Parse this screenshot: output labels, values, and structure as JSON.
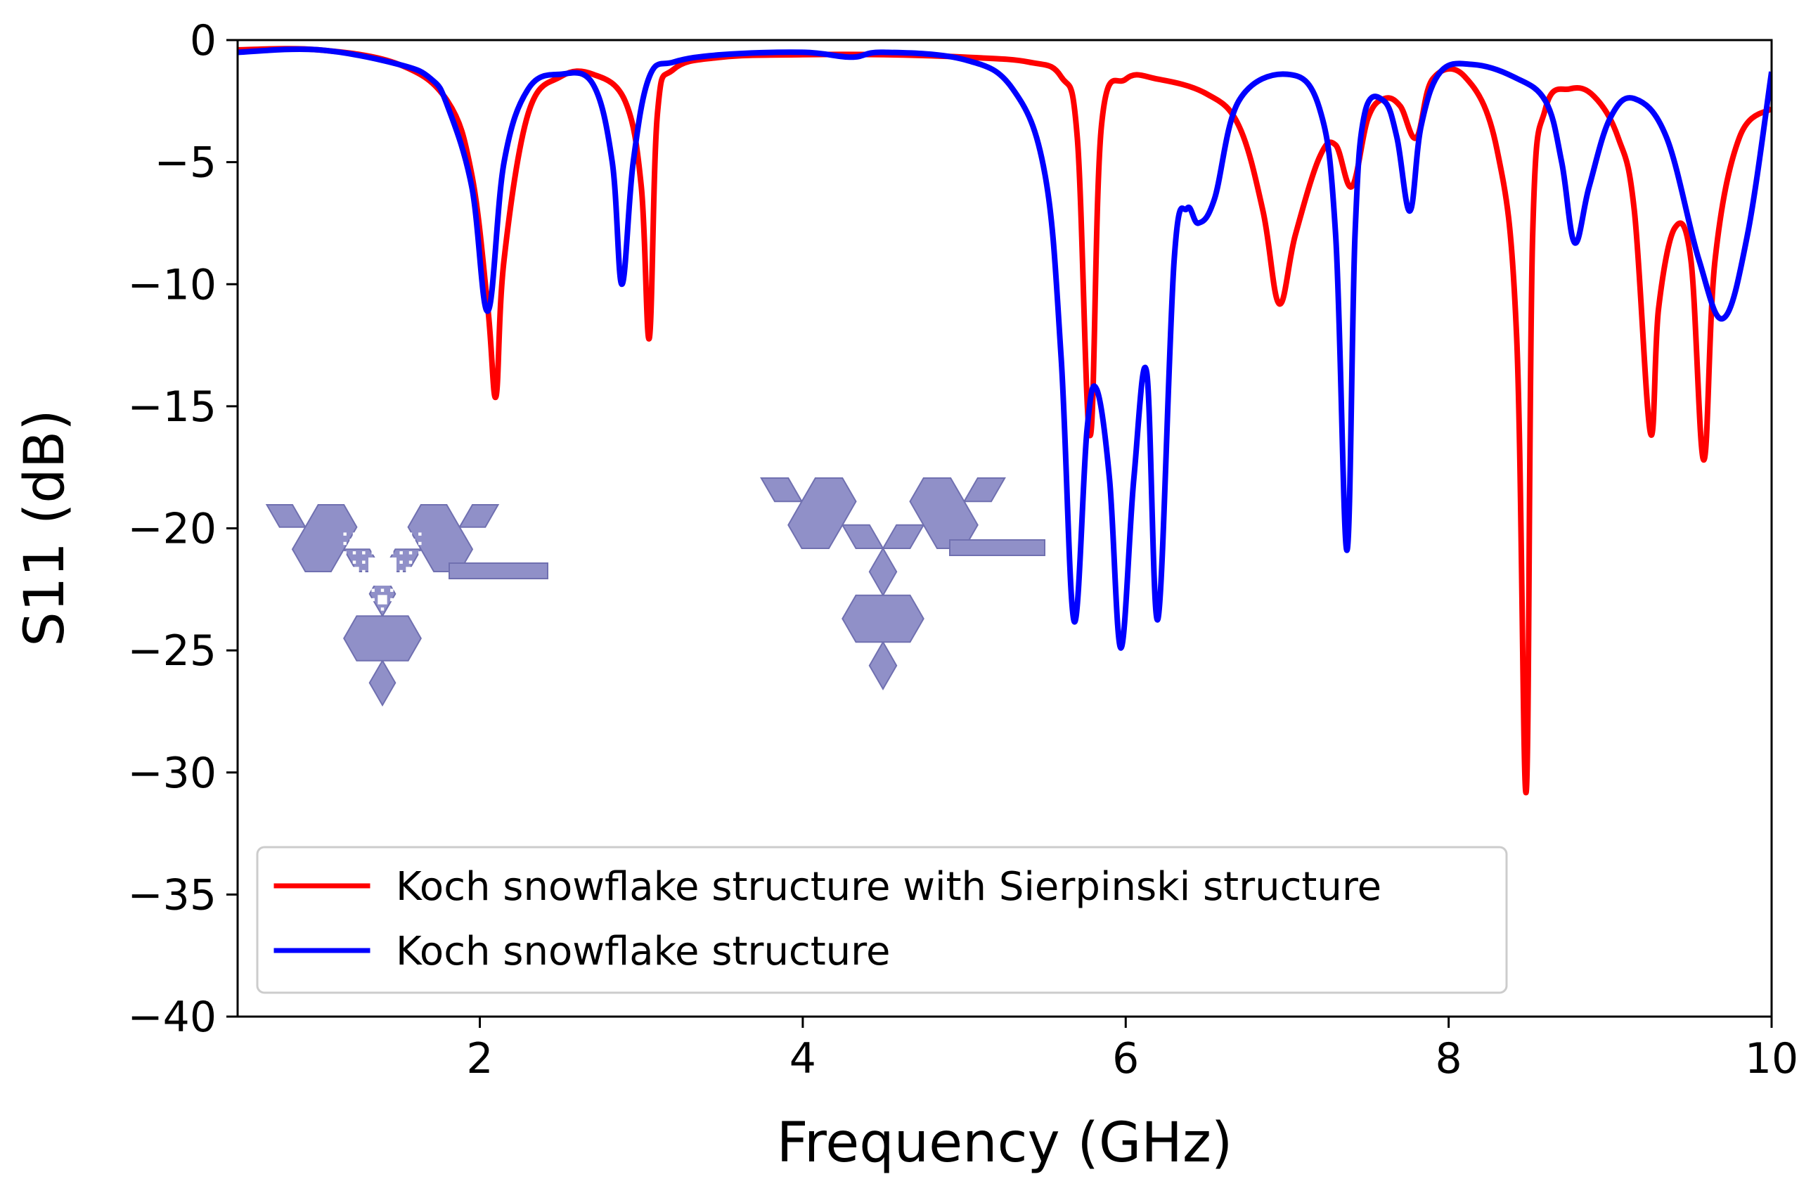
{
  "chart_data": {
    "type": "line",
    "xlabel": "Frequency (GHz)",
    "ylabel": "S11 (dB)",
    "xlim": [
      0.5,
      10
    ],
    "ylim": [
      -40,
      0
    ],
    "xticks": [
      2,
      4,
      6,
      8,
      10
    ],
    "yticks": [
      0,
      -5,
      -10,
      -15,
      -20,
      -25,
      -30,
      -35,
      -40
    ],
    "ytick_labels": [
      "0",
      "−5",
      "−10",
      "−15",
      "−20",
      "−25",
      "−30",
      "−35",
      "−40"
    ],
    "grid": false,
    "legend_position": "lower-left",
    "series": [
      {
        "name": "Koch snowflake structure with Sierpinski structure",
        "color": "#ff0000",
        "x": [
          0.5,
          1.0,
          1.5,
          1.8,
          1.95,
          2.05,
          2.1,
          2.15,
          2.3,
          2.5,
          2.7,
          2.9,
          3.0,
          3.05,
          3.1,
          3.2,
          3.5,
          4.0,
          4.5,
          5.0,
          5.4,
          5.6,
          5.7,
          5.78,
          5.85,
          6.0,
          6.2,
          6.5,
          6.7,
          6.85,
          6.95,
          7.05,
          7.2,
          7.3,
          7.4,
          7.5,
          7.6,
          7.7,
          7.8,
          7.9,
          8.1,
          8.3,
          8.42,
          8.48,
          8.52,
          8.6,
          8.75,
          8.9,
          9.05,
          9.15,
          9.25,
          9.3,
          9.4,
          9.5,
          9.58,
          9.65,
          9.8,
          10.0
        ],
        "y": [
          -0.4,
          -0.4,
          -1.0,
          -2.5,
          -5.5,
          -11.0,
          -14.6,
          -9.0,
          -3.0,
          -1.5,
          -1.4,
          -2.5,
          -6.0,
          -12.2,
          -3.0,
          -1.2,
          -0.7,
          -0.6,
          -0.6,
          -0.7,
          -0.9,
          -1.5,
          -4.0,
          -16.2,
          -3.5,
          -1.6,
          -1.6,
          -2.2,
          -3.5,
          -7.0,
          -10.8,
          -8.0,
          -4.8,
          -4.3,
          -6.0,
          -3.2,
          -2.4,
          -2.7,
          -4.0,
          -1.6,
          -1.5,
          -4.5,
          -12.0,
          -30.8,
          -8.0,
          -2.8,
          -2.0,
          -2.3,
          -4.0,
          -7.0,
          -16.1,
          -11.0,
          -7.7,
          -9.0,
          -17.2,
          -9.0,
          -4.0,
          -2.8
        ]
      },
      {
        "name": "Koch snowflake structure",
        "color": "#0000ff",
        "x": [
          0.5,
          1.0,
          1.5,
          1.7,
          1.8,
          1.95,
          2.05,
          2.15,
          2.3,
          2.5,
          2.7,
          2.82,
          2.88,
          2.95,
          3.05,
          3.2,
          3.5,
          4.0,
          4.3,
          4.5,
          5.0,
          5.3,
          5.5,
          5.6,
          5.68,
          5.76,
          5.82,
          5.9,
          5.97,
          6.05,
          6.13,
          6.2,
          6.3,
          6.38,
          6.45,
          6.55,
          6.7,
          7.0,
          7.2,
          7.3,
          7.37,
          7.42,
          7.48,
          7.6,
          7.68,
          7.76,
          7.83,
          7.95,
          8.15,
          8.4,
          8.6,
          8.7,
          8.78,
          8.87,
          9.0,
          9.15,
          9.35,
          9.55,
          9.7,
          9.85,
          10.0
        ],
        "y": [
          -0.5,
          -0.4,
          -1.0,
          -1.6,
          -2.7,
          -6.0,
          -11.1,
          -5.0,
          -2.0,
          -1.4,
          -1.8,
          -5.0,
          -10.0,
          -5.0,
          -1.5,
          -0.9,
          -0.6,
          -0.5,
          -0.7,
          -0.5,
          -0.8,
          -2.0,
          -5.5,
          -13.0,
          -23.8,
          -16.0,
          -14.3,
          -18.0,
          -24.9,
          -18.0,
          -13.6,
          -23.7,
          -9.0,
          -6.9,
          -7.5,
          -6.5,
          -2.5,
          -1.4,
          -2.8,
          -8.0,
          -20.9,
          -8.0,
          -3.0,
          -2.5,
          -4.0,
          -7.0,
          -3.5,
          -1.3,
          -1.0,
          -1.5,
          -2.5,
          -5.0,
          -8.3,
          -6.0,
          -3.2,
          -2.4,
          -4.0,
          -9.0,
          -11.4,
          -8.0,
          -1.3
        ]
      }
    ]
  },
  "insets": [
    {
      "name": "koch-sierpinski-antenna-inset",
      "color": "#9090c8"
    },
    {
      "name": "koch-antenna-inset",
      "color": "#9090c8"
    }
  ]
}
